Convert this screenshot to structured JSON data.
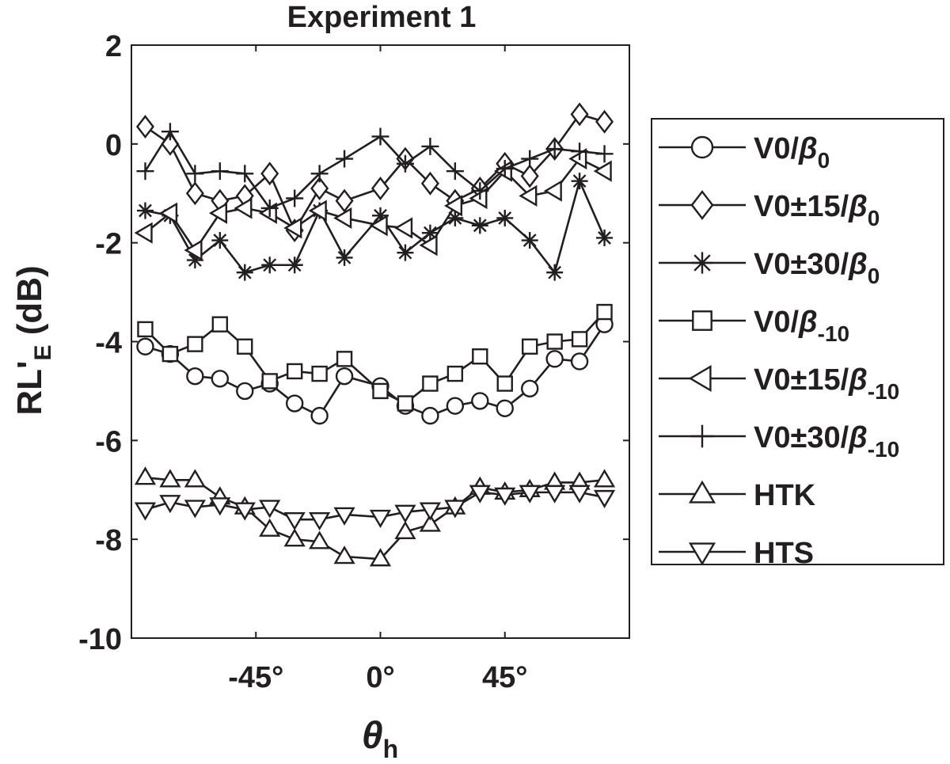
{
  "chart_data": {
    "type": "line",
    "title": "Experiment 1",
    "xlabel": "θh",
    "ylabel": "RL'E (dB)",
    "xlim": [
      -90,
      90
    ],
    "ylim": [
      -10,
      2
    ],
    "x_ticks": [
      -45,
      0,
      45
    ],
    "x_tick_labels": [
      "-45°",
      "0°",
      "45°"
    ],
    "y_ticks": [
      2,
      0,
      -2,
      -4,
      -6,
      -8,
      -10
    ],
    "y_tick_labels": [
      "2",
      "0",
      "-2",
      "-4",
      "-6",
      "-8",
      "-10"
    ],
    "grid": false,
    "legend_position": "outside-right",
    "x": [
      -85,
      -76,
      -67,
      -58,
      -49,
      -40,
      -31,
      -22,
      -13,
      0,
      9,
      18,
      27,
      36,
      45,
      54,
      63,
      72,
      81
    ],
    "series": [
      {
        "name": "V0/β0",
        "label_main": "V0/",
        "label_greek": "β",
        "label_sub": "0",
        "marker": "circle",
        "values": [
          -4.1,
          -4.25,
          -4.7,
          -4.75,
          -5.0,
          -4.85,
          -5.25,
          -5.5,
          -4.7,
          -4.9,
          -5.3,
          -5.5,
          -5.3,
          -5.2,
          -5.35,
          -4.95,
          -4.35,
          -4.4,
          -3.65
        ]
      },
      {
        "name": "V0±15/β0",
        "label_main": "V0±15/",
        "label_greek": "β",
        "label_sub": "0",
        "marker": "diamond",
        "values": [
          0.35,
          0.0,
          -1.0,
          -1.15,
          -1.05,
          -0.6,
          -1.75,
          -0.9,
          -1.15,
          -0.9,
          -0.3,
          -0.8,
          -1.15,
          -0.9,
          -0.4,
          -0.65,
          -0.1,
          0.6,
          0.45
        ]
      },
      {
        "name": "V0±30/β0",
        "label_main": "V0±30/",
        "label_greek": "β",
        "label_sub": "0",
        "marker": "asterisk",
        "values": [
          -1.35,
          -1.45,
          -2.35,
          -1.95,
          -2.6,
          -2.45,
          -2.45,
          -1.35,
          -2.3,
          -1.45,
          -2.2,
          -1.8,
          -1.5,
          -1.65,
          -1.5,
          -1.95,
          -2.6,
          -0.75,
          -1.9
        ]
      },
      {
        "name": "V0/β-10",
        "label_main": "V0/",
        "label_greek": "β",
        "label_sub": "-10",
        "marker": "square",
        "values": [
          -3.75,
          -4.25,
          -4.05,
          -3.65,
          -4.1,
          -4.8,
          -4.6,
          -4.65,
          -4.35,
          -5.0,
          -5.25,
          -4.85,
          -4.65,
          -4.3,
          -4.85,
          -4.1,
          -4.0,
          -3.95,
          -3.4
        ]
      },
      {
        "name": "V0±15/β-10",
        "label_main": "V0±15/",
        "label_greek": "β",
        "label_sub": "-10",
        "marker": "triangle-left",
        "values": [
          -1.8,
          -1.4,
          -2.15,
          -1.4,
          -1.3,
          -1.4,
          -1.7,
          -1.35,
          -1.5,
          -1.65,
          -1.7,
          -2.05,
          -1.25,
          -1.1,
          -0.55,
          -1.05,
          -0.95,
          -0.3,
          -0.55
        ]
      },
      {
        "name": "V0±30/β-10",
        "label_main": "V0±30/",
        "label_greek": "β",
        "label_sub": "-10",
        "marker": "plus",
        "values": [
          -0.55,
          0.25,
          -0.6,
          -0.55,
          -0.6,
          -1.3,
          -1.1,
          -0.6,
          -0.3,
          0.15,
          -0.4,
          -0.05,
          -0.55,
          -0.95,
          -0.5,
          -0.3,
          -0.1,
          -0.15,
          -0.2
        ]
      },
      {
        "name": "HTK",
        "label_main": "HTK",
        "label_greek": "",
        "label_sub": "",
        "marker": "triangle-up",
        "values": [
          -6.75,
          -6.8,
          -6.8,
          -7.15,
          -7.35,
          -7.8,
          -8.0,
          -8.05,
          -8.35,
          -8.4,
          -7.85,
          -7.7,
          -7.35,
          -6.95,
          -7.05,
          -7.0,
          -6.85,
          -6.85,
          -6.8
        ]
      },
      {
        "name": "HTS",
        "label_main": "HTS",
        "label_greek": "",
        "label_sub": "",
        "marker": "triangle-down",
        "values": [
          -7.4,
          -7.25,
          -7.35,
          -7.3,
          -7.4,
          -7.35,
          -7.6,
          -7.6,
          -7.5,
          -7.55,
          -7.45,
          -7.4,
          -7.35,
          -7.05,
          -7.1,
          -7.05,
          -7.05,
          -7.05,
          -7.15
        ]
      }
    ]
  }
}
